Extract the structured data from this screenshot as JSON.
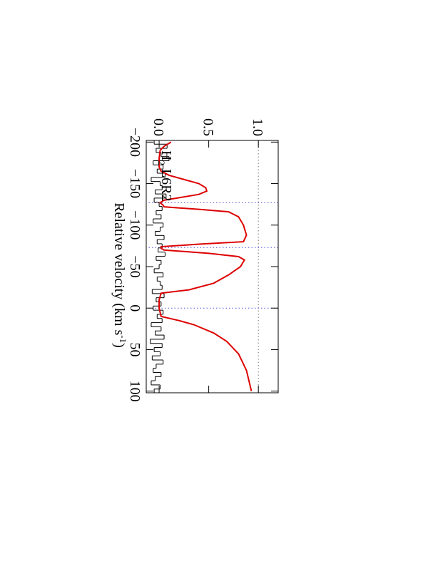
{
  "chart_data": {
    "type": "line",
    "xlabel": {
      "text": "Relative velocity (km s",
      "sup": "-1",
      "end": ")"
    },
    "annotation": {
      "main": "H",
      "sub": "2",
      "rest": " L6R2"
    },
    "xlim": [
      -202,
      102
    ],
    "ylim": [
      -0.13,
      1.2
    ],
    "xticks": [
      {
        "value": -200,
        "label": "−200"
      },
      {
        "value": -150,
        "label": "−150"
      },
      {
        "value": -100,
        "label": "−100"
      },
      {
        "value": -50,
        "label": "−50"
      },
      0,
      50,
      100
    ],
    "yticks": [
      {
        "value": 0,
        "label": "0.0"
      },
      0.5,
      {
        "value": 1,
        "label": "1.0"
      }
    ],
    "hlines": [
      {
        "value": 1,
        "color": "#777777"
      }
    ],
    "vlines": [
      {
        "value": -127,
        "color": "#5555dd"
      },
      {
        "value": -73,
        "color": "#5555dd"
      },
      {
        "value": 0,
        "color": "#5555dd"
      }
    ],
    "rotation": 90,
    "series": [
      {
        "color": "#000000",
        "style": "step",
        "x": [
          -200,
          -195,
          -190,
          -185,
          -180,
          -175,
          -170,
          -165,
          -160,
          -155,
          -150,
          -145,
          -140,
          -135,
          -130,
          -125,
          -120,
          -115,
          -110,
          -105,
          -100,
          -95,
          -90,
          -85,
          -80,
          -75,
          -70,
          -65,
          -60,
          -55,
          -50,
          -45,
          -40,
          -35,
          -30,
          -25,
          -20,
          -15,
          -10,
          -5,
          0,
          5,
          10,
          15,
          20,
          25,
          30,
          35,
          40,
          45,
          50,
          55,
          60,
          65,
          70,
          75,
          80,
          85,
          90,
          95,
          100
        ],
        "values": [
          -0.05,
          0.08,
          -0.03,
          0.02,
          0.1,
          -0.06,
          0.04,
          -0.02,
          0.06,
          -0.08,
          0.01,
          0.03,
          -0.04,
          0.07,
          -0.05,
          0.0,
          0.03,
          -0.03,
          0.02,
          -0.06,
          0.04,
          0.01,
          -0.04,
          0.05,
          -0.02,
          0.03,
          -0.01,
          0.06,
          -0.03,
          0.02,
          0.0,
          -0.05,
          0.04,
          -0.02,
          0.01,
          0.03,
          -0.07,
          0.05,
          -0.03,
          0.02,
          -0.06,
          0.04,
          -0.02,
          0.03,
          -0.08,
          0.02,
          -0.04,
          0.05,
          -0.09,
          0.03,
          -0.05,
          0.01,
          -0.07,
          0.04,
          -0.03,
          -0.06,
          0.02,
          -0.04,
          -0.08,
          0.01,
          -0.05
        ]
      },
      {
        "color": "#dd0000",
        "style": "line",
        "x": [
          -200,
          -195,
          -190,
          -180,
          -170,
          -165,
          -160,
          -155,
          -150,
          -145,
          -141,
          -137,
          -133,
          -130,
          -127,
          -124,
          -122,
          -119,
          -116,
          -110,
          -100,
          -88,
          -80,
          -77,
          -74,
          -72,
          -70,
          -66,
          -62,
          -58,
          -50,
          -40,
          -30,
          -22,
          -18,
          -10,
          0,
          10,
          15,
          20,
          30,
          40,
          55,
          75,
          100
        ],
        "values": [
          0.12,
          0.05,
          0.01,
          0,
          0,
          0.02,
          0.1,
          0.25,
          0.4,
          0.47,
          0.48,
          0.4,
          0.2,
          0.05,
          0.01,
          0.04,
          0.05,
          0.4,
          0.7,
          0.8,
          0.85,
          0.88,
          0.85,
          0.4,
          0.02,
          0.02,
          0.05,
          0.5,
          0.8,
          0.86,
          0.82,
          0.7,
          0.55,
          0.3,
          0.02,
          0,
          0,
          0.02,
          0.2,
          0.35,
          0.55,
          0.68,
          0.8,
          0.88,
          0.93
        ]
      }
    ]
  }
}
